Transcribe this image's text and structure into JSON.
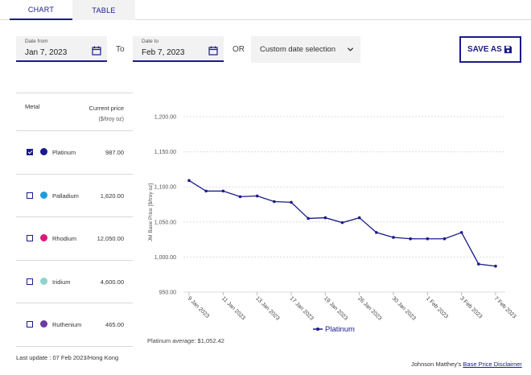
{
  "tabs": [
    {
      "label": "CHART",
      "active": true
    },
    {
      "label": "TABLE",
      "active": false
    }
  ],
  "date_from": {
    "label": "Date from",
    "value": "Jan 7, 2023"
  },
  "to_label": "To",
  "date_to": {
    "label": "Date to",
    "value": "Feb 7, 2023"
  },
  "or_label": "OR",
  "custom_select": {
    "value": "Custom date selection"
  },
  "save_button": {
    "label": "SAVE AS"
  },
  "metal_table": {
    "header_metal": "Metal",
    "header_price": "Current price",
    "header_unit": "($/troy oz)",
    "rows": [
      {
        "name": "Platinum",
        "price": "987.00",
        "checked": true,
        "color": "#1a1a8c"
      },
      {
        "name": "Palladium",
        "price": "1,620.00",
        "checked": false,
        "color": "#1e9ed8"
      },
      {
        "name": "Rhodium",
        "price": "12,050.00",
        "checked": false,
        "color": "#d81b7a"
      },
      {
        "name": "Iridium",
        "price": "4,600.00",
        "checked": false,
        "color": "#8fd3c8"
      },
      {
        "name": "Ruthenium",
        "price": "465.00",
        "checked": false,
        "color": "#6a3ca0"
      }
    ]
  },
  "chart_data": {
    "type": "line",
    "ylabel": "JM Base Price [$/troy oz]",
    "ylim": [
      950,
      1200
    ],
    "yticks": [
      "1,200.00",
      "1,150.00",
      "1,100.00",
      "1,050.00",
      "1,000.00",
      "950.00"
    ],
    "ytick_values": [
      1200,
      1150,
      1100,
      1050,
      1000,
      950
    ],
    "xticks": [
      "9 Jan 2023",
      "11 Jan 2023",
      "13 Jan 2023",
      "17 Jan 2023",
      "19 Jan 2023",
      "26 Jan 2023",
      "30 Jan 2023",
      "1 Feb 2023",
      "3 Feb 2023",
      "7 Feb 2023"
    ],
    "xtick_index": [
      0,
      2,
      4,
      6,
      8,
      10,
      12,
      14,
      16,
      18
    ],
    "grid": true,
    "legend_position": "bottom-center",
    "series": [
      {
        "name": "Platinum",
        "color": "#1a1a8c",
        "values": [
          1109,
          1094,
          1094,
          1086,
          1087,
          1079,
          1078,
          1055,
          1056,
          1049,
          1056,
          1035,
          1028,
          1026,
          1026,
          1026,
          1035,
          990,
          987
        ]
      }
    ]
  },
  "average": {
    "label": "Platinum average:",
    "value": "$1,052.42"
  },
  "last_update": "Last update : 07 Feb 2023/Hong Kong",
  "disclaimer": {
    "prefix": "Johnson Matthey's",
    "link": "Base Price Disclaimer"
  }
}
